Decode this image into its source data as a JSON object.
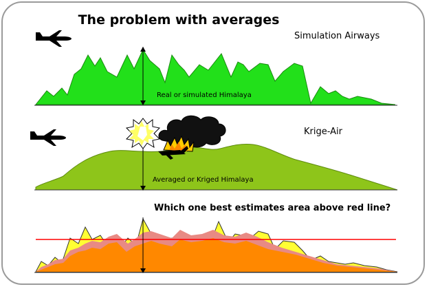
{
  "title": "The problem with averages",
  "panels": [
    {
      "airline": "Simulation Airways",
      "caption": "Real or simulated Himalaya",
      "color": "#22e01a"
    },
    {
      "airline": "Krige-Air",
      "caption": "Averaged or Kriged Himalaya",
      "color": "#8ec51a"
    },
    {
      "question": "Which one best estimates area above red line?",
      "fill_real": "#ffff33",
      "fill_average": "#ff8800",
      "overlap": "#e88a84",
      "threshold_color": "#ff0000"
    }
  ],
  "icons": [
    "airplane-icon",
    "explosion-icon",
    "smoke-cloud-icon",
    "fire-icon",
    "wreckage-icon"
  ]
}
